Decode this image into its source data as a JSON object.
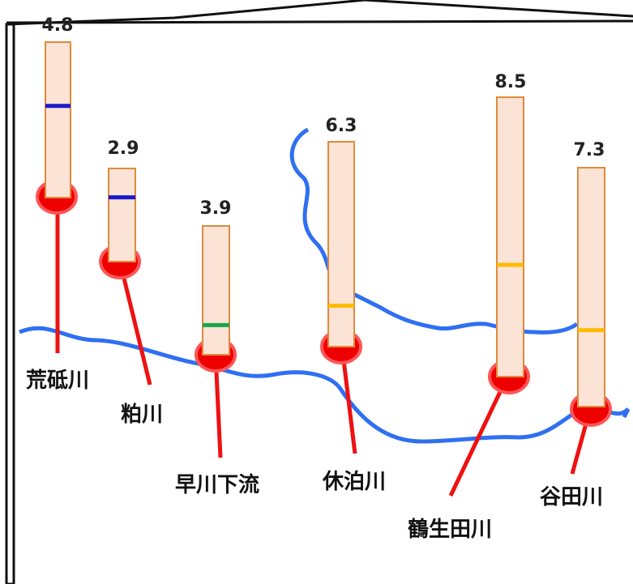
{
  "colors": {
    "river": "#2f6ff2",
    "gauge_fill": "#fbe3d6",
    "gauge_border": "#e08a3c",
    "leader": "#ee1111",
    "marker": "#ee0000"
  },
  "stations": [
    {
      "name": "荒砥川",
      "value": "4.8",
      "level_color": "#1a1acc",
      "level_fraction": 0.41
    },
    {
      "name": "粕川",
      "value": "2.9",
      "level_color": "#1a1acc",
      "level_fraction": 0.31
    },
    {
      "name": "早川下流",
      "value": "3.9",
      "level_color": "#1aa64a",
      "level_fraction": 0.77
    },
    {
      "name": "休泊川",
      "value": "6.3",
      "level_color": "#ffbb00",
      "level_fraction": 0.8
    },
    {
      "name": "鶴生田川",
      "value": "8.5",
      "level_color": "#ffbb00",
      "level_fraction": 0.6
    },
    {
      "name": "谷田川",
      "value": "7.3",
      "level_color": "#ffbb00",
      "level_fraction": 0.68
    }
  ]
}
